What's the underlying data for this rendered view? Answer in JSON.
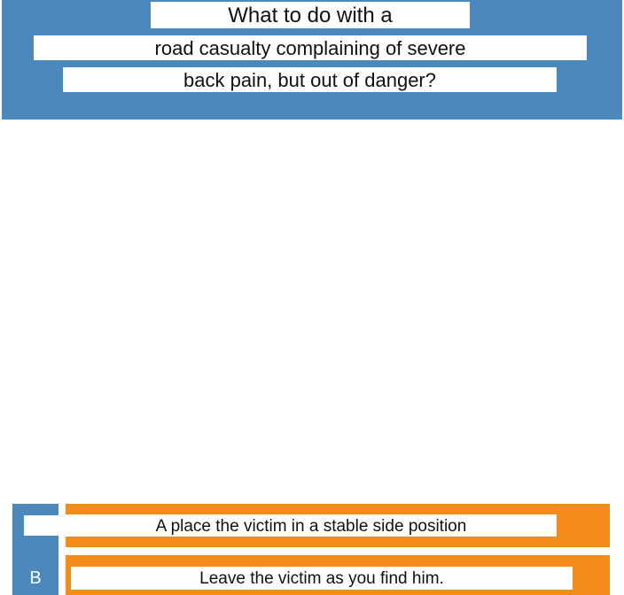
{
  "question": {
    "line1": "What to do with a",
    "line2": "road casualty complaining of severe",
    "line3": "back pain, but out of danger?"
  },
  "answers": [
    {
      "text": "A place the victim in a stable side position"
    },
    {
      "letter": "B",
      "text": "Leave the victim as you find him."
    }
  ],
  "colors": {
    "header_blue": "#4a88bd",
    "answer_orange": "#f48c1c"
  }
}
